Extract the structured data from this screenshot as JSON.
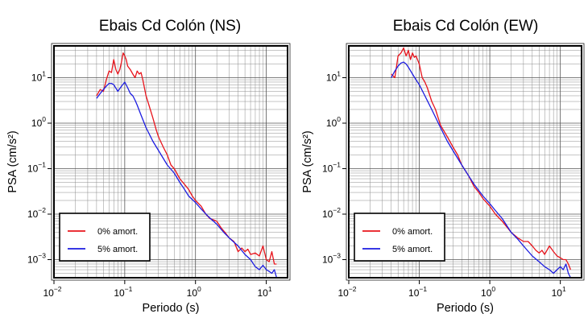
{
  "chart_data": [
    {
      "type": "line",
      "title": "Ebais Cd Colón (NS)",
      "xlabel": "Periodo (s)",
      "ylabel": "PSA (cm/s²)",
      "xscale": "log",
      "yscale": "log",
      "xlim": [
        0.01,
        20
      ],
      "ylim": [
        0.0004,
        50
      ],
      "xticks": [
        {
          "base": "10",
          "exp": "−2"
        },
        {
          "base": "10",
          "exp": "−1"
        },
        {
          "base": "10",
          "exp": "0"
        },
        {
          "base": "10",
          "exp": "1"
        }
      ],
      "yticks": [
        {
          "base": "10",
          "exp": "−3"
        },
        {
          "base": "10",
          "exp": "−2"
        },
        {
          "base": "10",
          "exp": "−1"
        },
        {
          "base": "10",
          "exp": "0"
        },
        {
          "base": "10",
          "exp": "1"
        }
      ],
      "grid": true,
      "legend_position": "bottom-left",
      "series": [
        {
          "name": "0% amort.",
          "color": "#e8141c",
          "x": [
            0.04,
            0.045,
            0.05,
            0.055,
            0.06,
            0.065,
            0.07,
            0.075,
            0.08,
            0.085,
            0.09,
            0.095,
            0.1,
            0.105,
            0.11,
            0.12,
            0.13,
            0.14,
            0.15,
            0.16,
            0.17,
            0.18,
            0.2,
            0.22,
            0.25,
            0.28,
            0.3,
            0.35,
            0.4,
            0.45,
            0.5,
            0.6,
            0.7,
            0.8,
            0.9,
            1.0,
            1.2,
            1.4,
            1.6,
            1.8,
            2.0,
            2.3,
            2.6,
            3.0,
            3.5,
            4.0,
            4.5,
            5.0,
            5.5,
            6.0,
            7.0,
            8.0,
            9.0,
            10.0,
            11.0,
            12.0,
            13.0,
            14.0
          ],
          "y": [
            4,
            5.5,
            5,
            9,
            14,
            13,
            25,
            15,
            12,
            15,
            22,
            35,
            30,
            25,
            18,
            15,
            12,
            10,
            14,
            12,
            13,
            9,
            4,
            2.5,
            1.3,
            0.7,
            0.5,
            0.3,
            0.2,
            0.12,
            0.1,
            0.06,
            0.045,
            0.035,
            0.025,
            0.02,
            0.015,
            0.01,
            0.008,
            0.0075,
            0.007,
            0.005,
            0.004,
            0.003,
            0.0025,
            0.0015,
            0.0018,
            0.0015,
            0.0017,
            0.0013,
            0.0014,
            0.0012,
            0.002,
            0.001,
            0.0009,
            0.0015,
            0.0008,
            0.0008
          ]
        },
        {
          "name": "5% amort.",
          "color": "#1c1ce0",
          "x": [
            0.04,
            0.045,
            0.05,
            0.055,
            0.06,
            0.065,
            0.07,
            0.08,
            0.09,
            0.1,
            0.11,
            0.12,
            0.13,
            0.14,
            0.15,
            0.17,
            0.2,
            0.25,
            0.3,
            0.4,
            0.5,
            0.6,
            0.7,
            0.8,
            1.0,
            1.2,
            1.5,
            2.0,
            2.5,
            3.0,
            4.0,
            5.0,
            6.0,
            7.0,
            8.0,
            9.0,
            10.0,
            11.0,
            12.0,
            13.0,
            14.0
          ],
          "y": [
            3.5,
            4.5,
            5.5,
            6.5,
            7.5,
            7.5,
            7,
            5,
            6.5,
            8,
            6,
            4.5,
            4,
            3.2,
            2.5,
            1.5,
            0.8,
            0.4,
            0.25,
            0.12,
            0.08,
            0.05,
            0.035,
            0.025,
            0.018,
            0.013,
            0.009,
            0.006,
            0.004,
            0.003,
            0.002,
            0.0013,
            0.001,
            0.0007,
            0.0006,
            0.00075,
            0.0006,
            0.00055,
            0.0005,
            0.0006,
            0.0004
          ]
        }
      ]
    },
    {
      "type": "line",
      "title": "Ebais Cd Colón (EW)",
      "xlabel": "Periodo (s)",
      "ylabel": "PSA (cm/s²)",
      "xscale": "log",
      "yscale": "log",
      "xlim": [
        0.01,
        20
      ],
      "ylim": [
        0.0004,
        50
      ],
      "xticks": [
        {
          "base": "10",
          "exp": "−2"
        },
        {
          "base": "10",
          "exp": "−1"
        },
        {
          "base": "10",
          "exp": "0"
        },
        {
          "base": "10",
          "exp": "1"
        }
      ],
      "yticks": [
        {
          "base": "10",
          "exp": "−3"
        },
        {
          "base": "10",
          "exp": "−2"
        },
        {
          "base": "10",
          "exp": "−1"
        },
        {
          "base": "10",
          "exp": "0"
        },
        {
          "base": "10",
          "exp": "1"
        }
      ],
      "grid": true,
      "legend_position": "bottom-left",
      "series": [
        {
          "name": "0% amort.",
          "color": "#e8141c",
          "x": [
            0.04,
            0.045,
            0.05,
            0.055,
            0.06,
            0.065,
            0.07,
            0.075,
            0.08,
            0.085,
            0.09,
            0.1,
            0.11,
            0.12,
            0.13,
            0.15,
            0.17,
            0.2,
            0.25,
            0.3,
            0.35,
            0.4,
            0.5,
            0.6,
            0.7,
            0.8,
            1.0,
            1.2,
            1.5,
            2.0,
            2.5,
            3.0,
            3.5,
            4.0,
            4.5,
            5.0,
            5.5,
            6.0,
            7.0,
            8.0,
            9.0,
            10.0,
            11.0,
            12.0,
            13.0,
            14.0
          ],
          "y": [
            12,
            10,
            30,
            35,
            45,
            30,
            40,
            25,
            35,
            28,
            30,
            20,
            10,
            8,
            6,
            3,
            2,
            0.9,
            0.5,
            0.3,
            0.2,
            0.12,
            0.07,
            0.04,
            0.03,
            0.022,
            0.015,
            0.01,
            0.007,
            0.004,
            0.003,
            0.0025,
            0.0025,
            0.002,
            0.0016,
            0.0014,
            0.0016,
            0.0013,
            0.002,
            0.0015,
            0.0012,
            0.0011,
            0.001,
            0.001,
            0.0008,
            0.0006
          ]
        },
        {
          "name": "5% amort.",
          "color": "#1c1ce0",
          "x": [
            0.04,
            0.045,
            0.05,
            0.055,
            0.06,
            0.065,
            0.07,
            0.08,
            0.09,
            0.1,
            0.12,
            0.15,
            0.2,
            0.25,
            0.3,
            0.4,
            0.5,
            0.6,
            0.8,
            1.0,
            1.2,
            1.5,
            2.0,
            2.5,
            3.0,
            4.0,
            5.0,
            6.0,
            7.0,
            8.0,
            9.0,
            10.0,
            11.0,
            12.0,
            13.0,
            14.0
          ],
          "y": [
            10,
            14,
            18,
            21,
            22,
            20,
            17,
            12,
            9,
            7,
            4,
            2,
            0.8,
            0.4,
            0.25,
            0.12,
            0.07,
            0.045,
            0.025,
            0.017,
            0.012,
            0.008,
            0.004,
            0.0028,
            0.002,
            0.0012,
            0.0009,
            0.0007,
            0.0006,
            0.0005,
            0.0006,
            0.0007,
            0.0006,
            0.0008,
            0.0005,
            0.0004
          ]
        }
      ]
    }
  ]
}
